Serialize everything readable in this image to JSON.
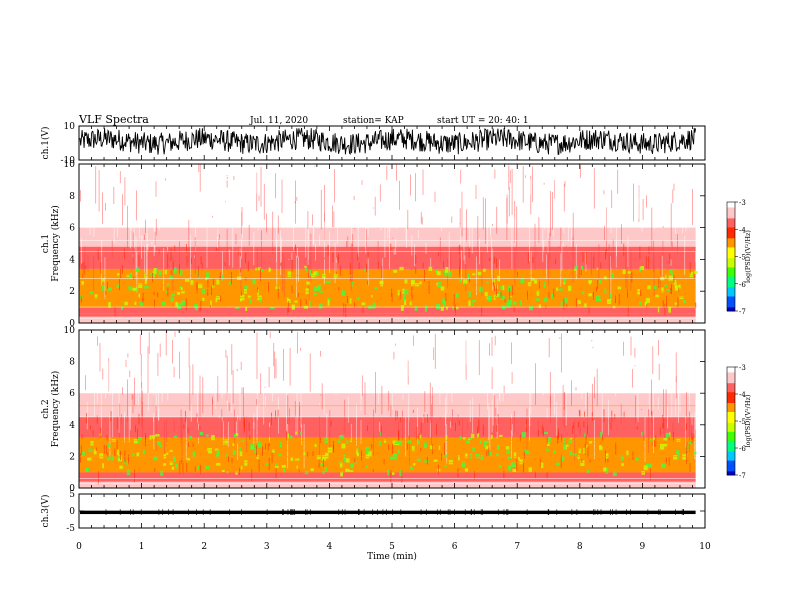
{
  "header": {
    "title": "VLF Spectra",
    "date": "Jul. 11, 2020",
    "station": "station= KAP",
    "start": "start UT = 20: 40: 1"
  },
  "colors": {
    "spectrum": [
      "#0000c8",
      "#0050ff",
      "#00c8ff",
      "#00ff80",
      "#40ff00",
      "#c8ff00",
      "#ffff00",
      "#ff9600",
      "#ff2a00",
      "#ff6060",
      "#ffc8c8",
      "#ffffff"
    ],
    "trace": "#000000"
  },
  "chart_data": [
    {
      "type": "line",
      "name": "ch1-waveform",
      "ylabel": "ch.1(V)",
      "ylim": [
        -10,
        10
      ],
      "yticks": [
        "10",
        "-10"
      ],
      "x_range_min": [
        0,
        9.85
      ],
      "description_note": "dense noise waveform spanning roughly -6 to +8 V"
    },
    {
      "type": "heatmap",
      "name": "ch1-spectrogram",
      "ylabel": "ch.1 Frequency (kHz)",
      "ylim": [
        0,
        10
      ],
      "yticks": [
        "0",
        "2",
        "4",
        "6",
        "8",
        "10"
      ],
      "bands_khz": [
        {
          "from": 0,
          "to": 0.4,
          "level": -3.2
        },
        {
          "from": 0.4,
          "to": 1.0,
          "level": -3.6
        },
        {
          "from": 1.0,
          "to": 2.0,
          "level": -4.3
        },
        {
          "from": 2.0,
          "to": 3.4,
          "level": -4.6
        },
        {
          "from": 3.4,
          "to": 4.8,
          "level": -3.9
        },
        {
          "from": 4.8,
          "to": 6.0,
          "level": -3.3
        },
        {
          "from": 6.0,
          "to": 10.0,
          "level": -3.1
        }
      ],
      "colorbar": {
        "label": "log(PSD)(V²/Hz)",
        "ticks": [
          "-3",
          "-4",
          "-5",
          "-6",
          "-7"
        ],
        "range": [
          -7,
          -3
        ]
      }
    },
    {
      "type": "heatmap",
      "name": "ch2-spectrogram",
      "ylabel": "ch.2 Frequency (kHz)",
      "ylim": [
        0,
        10
      ],
      "yticks": [
        "0",
        "2",
        "4",
        "6",
        "8",
        "10"
      ],
      "bands_khz": [
        {
          "from": 0,
          "to": 0.4,
          "level": -3.2
        },
        {
          "from": 0.4,
          "to": 1.0,
          "level": -3.7
        },
        {
          "from": 1.0,
          "to": 2.0,
          "level": -4.4
        },
        {
          "from": 2.0,
          "to": 3.2,
          "level": -4.5
        },
        {
          "from": 3.2,
          "to": 4.5,
          "level": -3.8
        },
        {
          "from": 4.5,
          "to": 6.0,
          "level": -3.3
        },
        {
          "from": 6.0,
          "to": 10.0,
          "level": -3.05
        }
      ],
      "colorbar": {
        "label": "log(PSD)(V²/Hz)",
        "ticks": [
          "-3",
          "-4",
          "-5",
          "-6",
          "-7"
        ],
        "range": [
          -7,
          -3
        ]
      }
    },
    {
      "type": "line",
      "name": "ch3-waveform",
      "ylabel": "ch.3(V)",
      "ylim": [
        -5,
        5
      ],
      "yticks": [
        "5",
        "0",
        "-5"
      ],
      "band_v": [
        -0.9,
        0.1
      ]
    }
  ],
  "xaxis": {
    "label": "Time (min)",
    "range": [
      0,
      10
    ],
    "ticks": [
      "0",
      "1",
      "2",
      "3",
      "4",
      "5",
      "6",
      "7",
      "8",
      "9",
      "10"
    ]
  }
}
